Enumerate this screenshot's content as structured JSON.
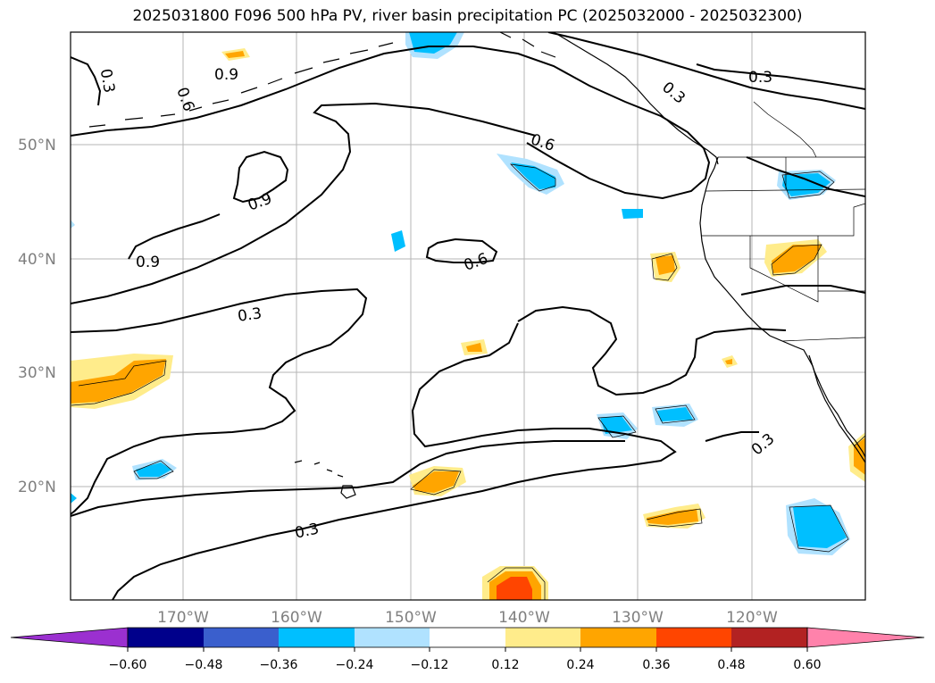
{
  "title": "2025031800 F096 500 hPa PV, river basin precipitation PC (2025032000 - 2025032300)",
  "map": {
    "lat_labels": [
      "50°N",
      "40°N",
      "30°N",
      "20°N"
    ],
    "lon_labels": [
      "170°W",
      "160°W",
      "150°W",
      "140°W",
      "130°W",
      "120°W"
    ],
    "contour_labels": [
      "0.9",
      "0.3",
      "0.6",
      "0.3",
      "0.6",
      "0.9",
      "0.9",
      "0.6",
      "0.3",
      "0.3",
      "0.3"
    ]
  },
  "colorbar": {
    "ticks": [
      "−0.60",
      "−0.48",
      "−0.36",
      "−0.24",
      "−0.12",
      "0.12",
      "0.24",
      "0.36",
      "0.48",
      "0.60"
    ],
    "colors": [
      "#9b30d0",
      "#00008b",
      "#3a5fcd",
      "#00bfff",
      "#b0e2ff",
      "#ffffff",
      "#ffec8b",
      "#ffa500",
      "#ff4500",
      "#b22222",
      "#ff82ab"
    ]
  },
  "fill_colors": {
    "neg_light": "#b0e2ff",
    "neg_mid": "#00bfff",
    "pos_light": "#ffec8b",
    "pos_mid": "#ffa500",
    "pos_high": "#ff4500"
  }
}
